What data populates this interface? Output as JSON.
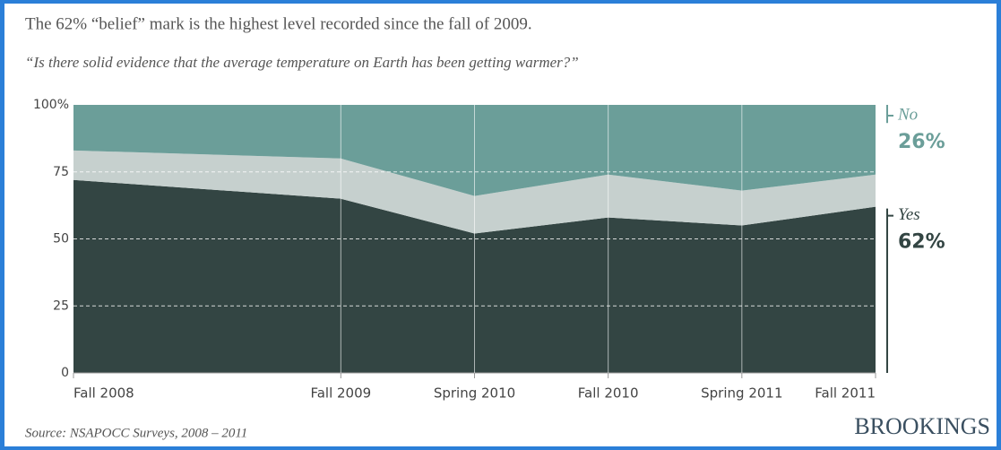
{
  "chart_data": {
    "type": "stacked_area",
    "title": "The 62% “belief” mark is the highest level recorded since the fall of 2009.",
    "subtitle": "“Is there solid evidence that the average temperature on Earth has been getting warmer?”",
    "source": "Source: NSAPOCC Surveys, 2008 – 2011",
    "brand": "BROOKINGS",
    "categories": [
      "Fall 2008",
      "Fall 2009",
      "Spring 2010",
      "Fall 2010",
      "Spring 2011",
      "Fall 2011"
    ],
    "series": [
      {
        "name": "Yes",
        "color": "#334543",
        "values": [
          72,
          65,
          52,
          58,
          55,
          62
        ],
        "value_labels": [
          null,
          null,
          null,
          null,
          null,
          "62%"
        ]
      },
      {
        "color": "#c6d0ce",
        "values": [
          11,
          15,
          14,
          16,
          13,
          12
        ]
      },
      {
        "name": "No",
        "color": "#6b9e99",
        "values": [
          17,
          20,
          34,
          26,
          32,
          26
        ],
        "value_labels": [
          null,
          null,
          null,
          null,
          null,
          "26%"
        ]
      }
    ],
    "ylim": [
      0,
      100
    ],
    "yticks": [
      0,
      25,
      50,
      75,
      {
        "value": 100,
        "label": "100%"
      }
    ],
    "grid": true
  }
}
